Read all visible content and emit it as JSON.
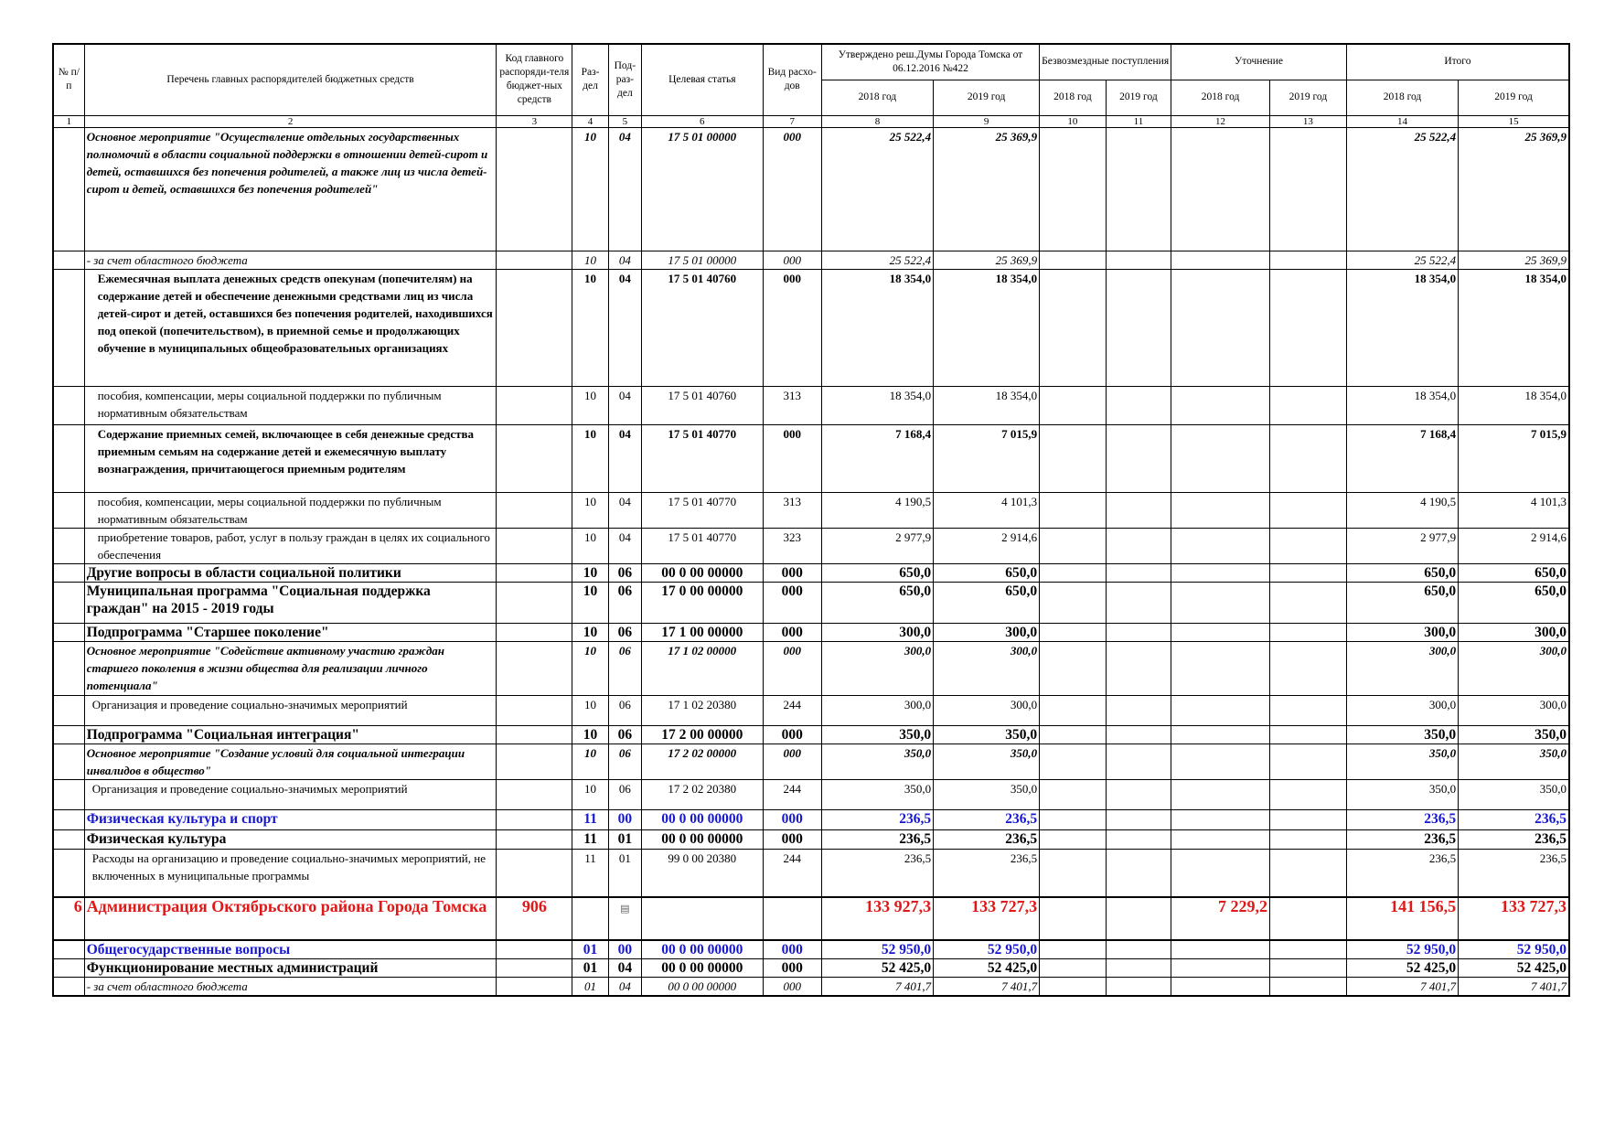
{
  "header": {
    "num": "№ п/п",
    "name": "Перечень главных распорядителей бюджетных средств",
    "code": "Код главного распоряди-теля бюджет-ных средств",
    "razdel": "Раз-дел",
    "podrazdel": "Под-раз-дел",
    "article": "Целевая статья",
    "vid": "Вид расхо-дов",
    "approved": "Утверждено реш.Думы Города Томска от 06.12.2016 №422",
    "free": "Безвозмездные поступления",
    "clar": "Уточнение",
    "total": "Итого",
    "y2018": "2018 год",
    "y2019": "2019 год"
  },
  "colnums": [
    "1",
    "2",
    "3",
    "4",
    "5",
    "6",
    "7",
    "8",
    "9",
    "10",
    "11",
    "12",
    "13",
    "14",
    "15"
  ],
  "rows": [
    {
      "name": "Основное мероприятие \"Осуществление отдельных государственных полномочий в области социальной поддержки в отношении детей-сирот и детей, оставшихся без попечения родителей, а также лиц из числа детей-сирот и детей, оставшихся без попечения родителей\"",
      "razdel": "10",
      "podrazdel": "04",
      "article": "17 5 01 00000",
      "vid": "000",
      "a18": "25 522,4",
      "a19": "25 369,9",
      "t18": "25 522,4",
      "t19": "25 369,9"
    },
    {
      "name": "- за счет областного бюджета",
      "razdel": "10",
      "podrazdel": "04",
      "article": "17 5 01 00000",
      "vid": "000",
      "a18": "25 522,4",
      "a19": "25 369,9",
      "t18": "25 522,4",
      "t19": "25 369,9"
    },
    {
      "name": "Ежемесячная выплата денежных средств опекунам (попечителям) на содержание детей и обеспечение денежными средствами лиц из числа детей-сирот и детей, оставшихся без попечения родителей, находившихся под опекой (попечительством), в приемной семье и продолжающих обучение в муниципальных общеобразовательных организациях",
      "razdel": "10",
      "podrazdel": "04",
      "article": "17 5 01 40760",
      "vid": "000",
      "a18": "18 354,0",
      "a19": "18 354,0",
      "t18": "18 354,0",
      "t19": "18 354,0"
    },
    {
      "name": "пособия, компенсации, меры социальной поддержки по публичным нормативным обязательствам",
      "razdel": "10",
      "podrazdel": "04",
      "article": "17 5 01 40760",
      "vid": "313",
      "a18": "18 354,0",
      "a19": "18 354,0",
      "t18": "18 354,0",
      "t19": "18 354,0"
    },
    {
      "name": "Содержание приемных семей, включающее в себя денежные средства приемным семьям на содержание детей и ежемесячную выплату вознаграждения, причитающегося приемным родителям",
      "razdel": "10",
      "podrazdel": "04",
      "article": "17 5 01 40770",
      "vid": "000",
      "a18": "7 168,4",
      "a19": "7 015,9",
      "t18": "7 168,4",
      "t19": "7 015,9"
    },
    {
      "name": "пособия, компенсации, меры социальной поддержки по публичным нормативным обязательствам",
      "razdel": "10",
      "podrazdel": "04",
      "article": "17 5 01 40770",
      "vid": "313",
      "a18": "4 190,5",
      "a19": "4 101,3",
      "t18": "4 190,5",
      "t19": "4 101,3"
    },
    {
      "name": "приобретение товаров, работ, услуг в пользу граждан в целях их социального обеспечения",
      "razdel": "10",
      "podrazdel": "04",
      "article": "17 5 01 40770",
      "vid": "323",
      "a18": "2 977,9",
      "a19": "2 914,6",
      "t18": "2 977,9",
      "t19": "2 914,6"
    },
    {
      "name": "Другие вопросы в области социальной политики",
      "razdel": "10",
      "podrazdel": "06",
      "article": "00 0 00 00000",
      "vid": "000",
      "a18": "650,0",
      "a19": "650,0",
      "t18": "650,0",
      "t19": "650,0"
    },
    {
      "name": "Муниципальная программа \"Социальная поддержка граждан\" на 2015 - 2019 годы",
      "razdel": "10",
      "podrazdel": "06",
      "article": "17 0 00 00000",
      "vid": "000",
      "a18": "650,0",
      "a19": "650,0",
      "t18": "650,0",
      "t19": "650,0"
    },
    {
      "name": "Подпрограмма \"Старшее поколение\"",
      "razdel": "10",
      "podrazdel": "06",
      "article": "17 1 00 00000",
      "vid": "000",
      "a18": "300,0",
      "a19": "300,0",
      "t18": "300,0",
      "t19": "300,0"
    },
    {
      "name": "Основное мероприятие \"Содействие активному участию граждан старшего поколения в жизни общества для реализации личного потенциала\"",
      "razdel": "10",
      "podrazdel": "06",
      "article": "17 1 02 00000",
      "vid": "000",
      "a18": "300,0",
      "a19": "300,0",
      "t18": "300,0",
      "t19": "300,0"
    },
    {
      "name": "Организация и проведение социально-значимых мероприятий",
      "razdel": "10",
      "podrazdel": "06",
      "article": "17 1 02 20380",
      "vid": "244",
      "a18": "300,0",
      "a19": "300,0",
      "t18": "300,0",
      "t19": "300,0"
    },
    {
      "name": "Подпрограмма \"Социальная интеграция\"",
      "razdel": "10",
      "podrazdel": "06",
      "article": "17 2 00 00000",
      "vid": "000",
      "a18": "350,0",
      "a19": "350,0",
      "t18": "350,0",
      "t19": "350,0"
    },
    {
      "name": "Основное мероприятие \"Создание условий для социальной интеграции инвалидов в общество\"",
      "razdel": "10",
      "podrazdel": "06",
      "article": "17 2 02 00000",
      "vid": "000",
      "a18": "350,0",
      "a19": "350,0",
      "t18": "350,0",
      "t19": "350,0"
    },
    {
      "name": "Организация и проведение социально-значимых мероприятий",
      "razdel": "10",
      "podrazdel": "06",
      "article": "17 2 02 20380",
      "vid": "244",
      "a18": "350,0",
      "a19": "350,0",
      "t18": "350,0",
      "t19": "350,0"
    },
    {
      "name": "Физическая культура и спорт",
      "razdel": "11",
      "podrazdel": "00",
      "article": "00 0 00 00000",
      "vid": "000",
      "a18": "236,5",
      "a19": "236,5",
      "t18": "236,5",
      "t19": "236,5"
    },
    {
      "name": "Физическая культура",
      "razdel": "11",
      "podrazdel": "01",
      "article": "00 0 00 00000",
      "vid": "000",
      "a18": "236,5",
      "a19": "236,5",
      "t18": "236,5",
      "t19": "236,5"
    },
    {
      "name": "Расходы на организацию и проведение социально-значимых мероприятий, не включенных в муниципальные программы",
      "razdel": "11",
      "podrazdel": "01",
      "article": "99 0 00 20380",
      "vid": "244",
      "a18": "236,5",
      "a19": "236,5",
      "t18": "236,5",
      "t19": "236,5"
    },
    {
      "num": "6",
      "name": "Администрация Октябрьского района Города Томска",
      "code": "906",
      "a18": "133 927,3",
      "a19": "133 727,3",
      "c18": "7 229,2",
      "t18": "141 156,5",
      "t19": "133 727,3"
    },
    {
      "name": "Общегосударственные вопросы",
      "razdel": "01",
      "podrazdel": "00",
      "article": "00 0 00 00000",
      "vid": "000",
      "a18": "52 950,0",
      "a19": "52 950,0",
      "t18": "52 950,0",
      "t19": "52 950,0"
    },
    {
      "name": "Функционирование местных администраций",
      "razdel": "01",
      "podrazdel": "04",
      "article": "00 0 00 00000",
      "vid": "000",
      "a18": "52 425,0",
      "a19": "52 425,0",
      "t18": "52 425,0",
      "t19": "52 425,0"
    },
    {
      "name": "- за счет областного бюджета",
      "razdel": "01",
      "podrazdel": "04",
      "article": "00 0 00 00000",
      "vid": "000",
      "a18": "7 401,7",
      "a19": "7 401,7",
      "t18": "7 401,7",
      "t19": "7 401,7"
    }
  ],
  "colors": {
    "section_blue": "#1717d0",
    "admin_red": "#e01818"
  },
  "icons": {
    "podrazdel_placeholder": "square-glyph-icon"
  }
}
